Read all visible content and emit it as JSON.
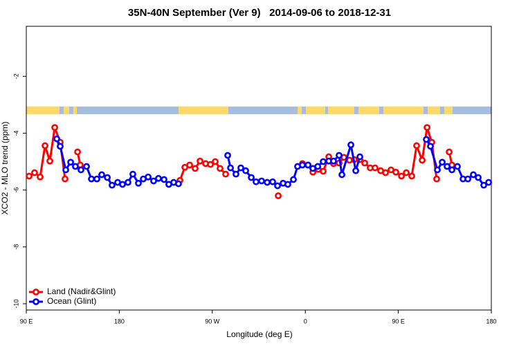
{
  "chart_data": {
    "type": "line",
    "title": "35N-40N September (Ver 9)   2014-09-06 to 2018-12-31",
    "x_label": "Longitude (deg E)",
    "y_label": "XCO2 - MLO trend (ppm)",
    "xlim": [
      90,
      540
    ],
    "xticks": [
      {
        "value": 90,
        "label": "90 E"
      },
      {
        "value": 180,
        "label": "180"
      },
      {
        "value": 270,
        "label": "90 W"
      },
      {
        "value": 360,
        "label": "0"
      },
      {
        "value": 450,
        "label": "90 E"
      },
      {
        "value": 540,
        "label": "180"
      }
    ],
    "ylim": [
      -10.22,
      -0.24
    ],
    "yticks": [
      -10,
      -8,
      -6,
      -4,
      -2
    ],
    "legend": "lower left",
    "series": [
      {
        "name": "Land (Nadir&Glint)",
        "color": "#ff0000",
        "x": [
          92.7,
          98.0,
          103.4,
          108.1,
          112.8,
          117.5,
          122.8,
          127.5,
          133.5,
          139.6,
          142.2,
          190.0,
          238.7,
          243.4,
          248.1,
          253.4,
          258.1,
          263.5,
          268.2,
          272.8,
          277.5,
          282.9,
          308.0,
          333.8,
          345.0,
          357.2,
          362.6,
          367.3,
          372.6,
          377.3,
          382.7,
          387.3,
          392.7,
          397.4,
          402.7,
          407.4,
          412.8,
          417.5,
          422.8,
          427.5,
          432.9,
          437.6,
          442.9,
          447.6,
          453.0,
          457.7,
          463.0,
          467.7,
          473.1,
          477.8,
          482.4,
          487.1,
          493.0,
          499.2,
          501.9
        ],
        "values": [
          -5.51,
          -5.39,
          -5.54,
          -4.44,
          -4.98,
          -3.8,
          -4.32,
          -5.61,
          null,
          -4.66,
          -5.12,
          null,
          -5.66,
          -5.2,
          -5.12,
          -5.24,
          -4.98,
          -5.07,
          -5.1,
          -5.0,
          -5.24,
          -5.44,
          null,
          -6.2,
          null,
          -5.07,
          -5.12,
          -5.37,
          -5.27,
          -5.34,
          -4.83,
          -5.07,
          -5.05,
          -4.85,
          -4.95,
          -4.93,
          -4.93,
          -5.05,
          -5.22,
          -5.22,
          -5.32,
          -5.39,
          -5.29,
          -5.37,
          -5.51,
          -5.39,
          -5.51,
          -4.44,
          -4.95,
          -3.8,
          -4.32,
          -5.61,
          null,
          -4.66,
          -5.12
        ]
      },
      {
        "name": "Ocean (Glint)",
        "color": "#0000ff",
        "x": [
          119.5,
          122.8,
          128.2,
          132.9,
          137.5,
          142.9,
          148.3,
          153.0,
          158.3,
          163.0,
          168.4,
          173.0,
          178.4,
          183.1,
          188.4,
          193.1,
          198.5,
          203.2,
          207.9,
          213.2,
          217.9,
          223.3,
          227.9,
          232.6,
          237.3,
          261.0,
          284.9,
          287.6,
          292.9,
          297.6,
          302.3,
          307.7,
          312.3,
          317.7,
          323.1,
          328.4,
          333.1,
          338.5,
          343.1,
          348.5,
          352.5,
          357.2,
          362.6,
          367.3,
          372.0,
          377.3,
          382.7,
          387.3,
          392.7,
          395.4,
          404.1,
          408.8,
          412.8,
          445.0,
          477.1,
          481.1,
          487.8,
          492.5,
          497.2,
          501.9,
          507.2,
          512.6,
          517.3,
          522.6,
          527.3,
          532.7,
          537.4
        ],
        "values": [
          -4.2,
          -4.46,
          -5.29,
          -5.02,
          -5.17,
          -5.29,
          -5.17,
          -5.61,
          -5.61,
          -5.46,
          -5.56,
          -5.83,
          -5.73,
          -5.8,
          -5.73,
          -5.44,
          -5.76,
          -5.61,
          -5.54,
          -5.68,
          -5.59,
          -5.63,
          -5.8,
          -5.73,
          -5.78,
          null,
          -4.78,
          -5.22,
          -5.44,
          -5.22,
          -5.32,
          -5.56,
          -5.71,
          -5.68,
          -5.73,
          -5.71,
          -5.85,
          -5.76,
          -5.8,
          -5.63,
          -5.17,
          -5.12,
          -5.12,
          -5.24,
          -5.17,
          -5.0,
          -4.98,
          -4.98,
          -4.78,
          -5.46,
          -4.41,
          -5.32,
          -4.83,
          null,
          -4.22,
          -4.46,
          -5.29,
          -5.02,
          -5.17,
          -5.29,
          -5.17,
          -5.61,
          -5.61,
          -5.46,
          -5.56,
          -5.83,
          -5.73
        ]
      }
    ]
  }
}
